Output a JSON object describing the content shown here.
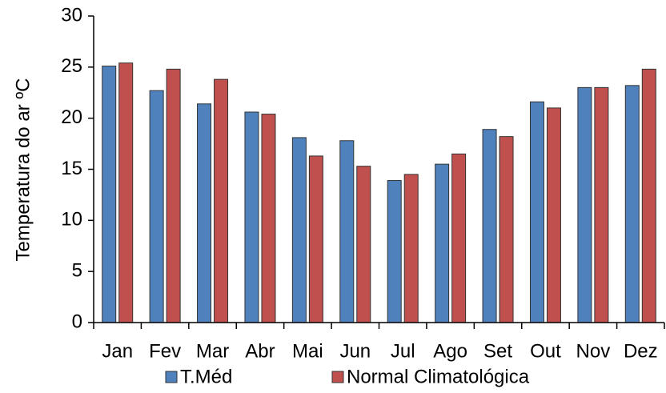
{
  "chart_data": {
    "type": "bar",
    "y_label": "Temperatura do ar ºC",
    "categories": [
      "Jan",
      "Fev",
      "Mar",
      "Abr",
      "Mai",
      "Jun",
      "Jul",
      "Ago",
      "Set",
      "Out",
      "Nov",
      "Dez"
    ],
    "series": [
      {
        "name": "T.Méd",
        "color": "#4f81bd",
        "values": [
          25.1,
          22.7,
          21.4,
          20.6,
          18.1,
          17.8,
          13.9,
          15.5,
          18.9,
          21.6,
          23.0,
          23.2
        ]
      },
      {
        "name": "Normal Climatológica",
        "color": "#c0504d",
        "values": [
          25.4,
          24.8,
          23.8,
          20.4,
          16.3,
          15.3,
          14.5,
          16.5,
          18.2,
          21.0,
          23.0,
          24.8
        ]
      }
    ],
    "ylim": [
      0,
      30
    ],
    "yticks": [
      0,
      5,
      10,
      15,
      20,
      25,
      30
    ],
    "grid": false
  }
}
